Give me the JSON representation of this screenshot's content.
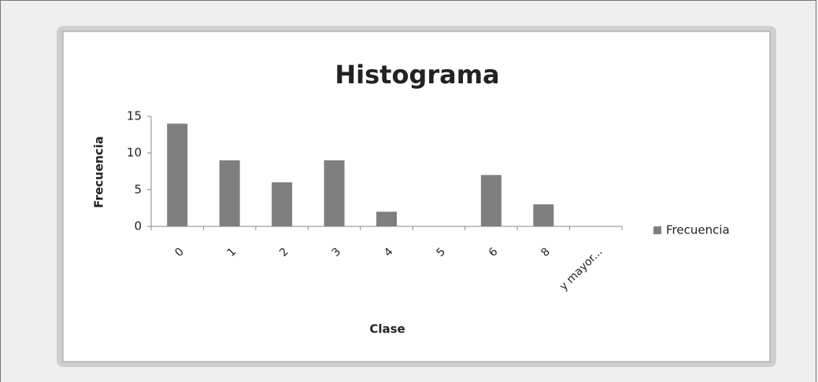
{
  "chart_data": {
    "type": "bar",
    "title": "Histograma",
    "x_label": "Clase",
    "y_label": "Frecuencia",
    "categories": [
      "0",
      "1",
      "2",
      "3",
      "4",
      "5",
      "6",
      "8",
      "y mayor..."
    ],
    "series": [
      {
        "name": "Frecuencia",
        "color": "#7f7f7f",
        "values": [
          14,
          9,
          6,
          9,
          2,
          0,
          7,
          3,
          0
        ]
      }
    ],
    "ylim": [
      0,
      15
    ],
    "yticks": [
      0,
      5,
      10,
      15
    ],
    "grid": false,
    "legend": "right"
  }
}
